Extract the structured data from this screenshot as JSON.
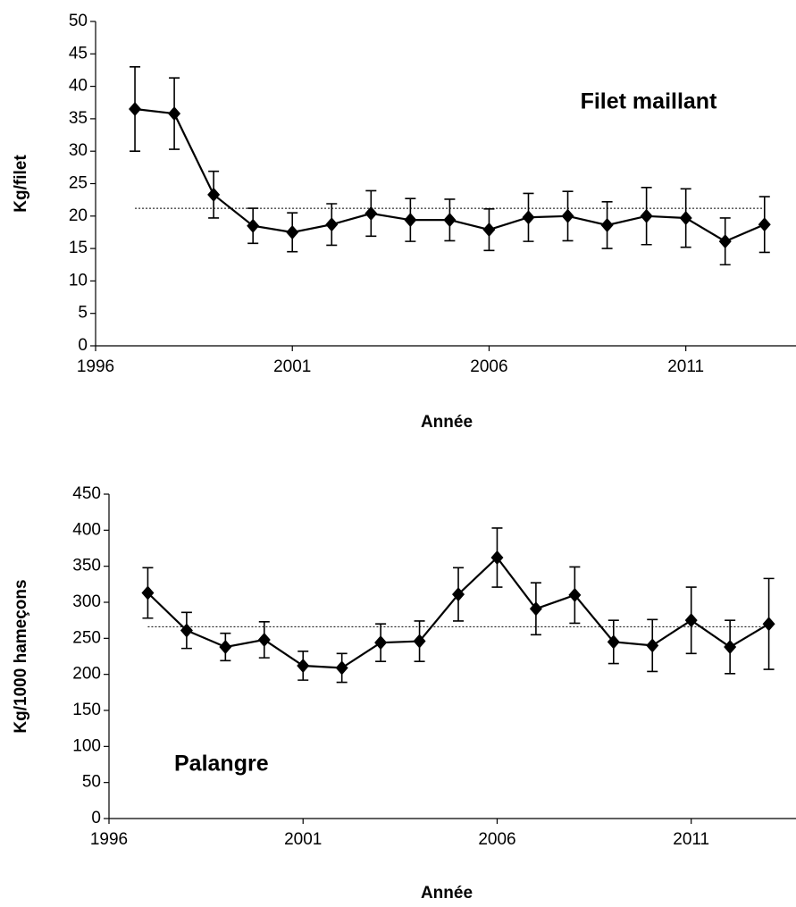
{
  "chart_data": [
    {
      "type": "line",
      "annotation": "Filet maillant",
      "xlabel": "Année",
      "ylabel": "Kg/filet",
      "x": [
        1997,
        1998,
        1999,
        2000,
        2001,
        2002,
        2003,
        2004,
        2005,
        2006,
        2007,
        2008,
        2009,
        2010,
        2011,
        2012,
        2013
      ],
      "values": [
        36.5,
        35.8,
        23.3,
        18.5,
        17.5,
        18.7,
        20.4,
        19.4,
        19.4,
        17.9,
        19.8,
        20,
        18.6,
        20,
        19.7,
        16.1,
        18.7
      ],
      "errors": [
        6.5,
        5.5,
        3.6,
        2.7,
        3,
        3.2,
        3.5,
        3.3,
        3.2,
        3.2,
        3.7,
        3.8,
        3.6,
        4.4,
        4.5,
        3.6,
        4.3
      ],
      "color": "#000000",
      "reference_line": 21.2,
      "xlim": [
        1996,
        2013.8
      ],
      "xticks": [
        1996,
        2001,
        2006,
        2011
      ],
      "ylim": [
        0,
        50
      ],
      "yticks": [
        0,
        5,
        10,
        15,
        20,
        25,
        30,
        35,
        40,
        45,
        50
      ]
    },
    {
      "type": "line",
      "annotation": "Palangre",
      "xlabel": "Année",
      "ylabel": "Kg/1000 hameçons",
      "x": [
        1997,
        1998,
        1999,
        2000,
        2001,
        2002,
        2003,
        2004,
        2005,
        2006,
        2007,
        2008,
        2009,
        2010,
        2011,
        2012,
        2013
      ],
      "values": [
        313,
        261,
        238,
        248,
        212,
        209,
        244,
        246,
        311,
        362,
        291,
        310,
        245,
        240,
        275,
        238,
        270
      ],
      "errors": [
        35,
        25,
        19,
        25,
        20,
        20,
        26,
        28,
        37,
        41,
        36,
        39,
        30,
        36,
        46,
        37,
        63
      ],
      "color": "#000000",
      "reference_line": 266,
      "xlim": [
        1996,
        2013.7
      ],
      "xticks": [
        1996,
        2001,
        2006,
        2011
      ],
      "ylim": [
        0,
        450
      ],
      "yticks": [
        0,
        50,
        100,
        150,
        200,
        250,
        300,
        350,
        400,
        450
      ]
    }
  ]
}
